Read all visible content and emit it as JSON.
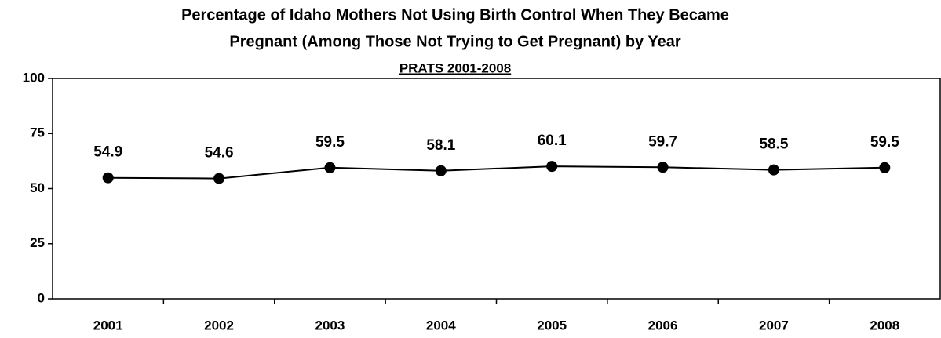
{
  "chart_data": {
    "type": "line",
    "title": [
      "Percentage of Idaho Mothers Not Using Birth Control When They Became",
      "Pregnant (Among Those Not Trying to Get Pregnant) by Year"
    ],
    "subtitle": "PRATS 2001-2008",
    "categories": [
      "2001",
      "2002",
      "2003",
      "2004",
      "2005",
      "2006",
      "2007",
      "2008"
    ],
    "values": [
      54.9,
      54.6,
      59.5,
      58.1,
      60.1,
      59.7,
      58.5,
      59.5
    ],
    "color": "#000000",
    "ylim": [
      0,
      100
    ],
    "yticks": [
      0,
      25,
      50,
      75,
      100
    ]
  }
}
